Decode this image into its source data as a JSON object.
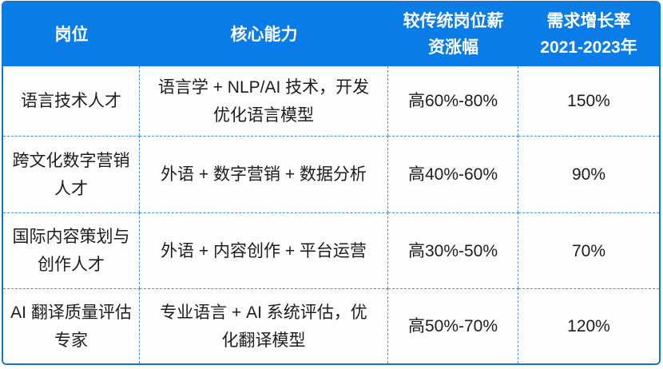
{
  "table": {
    "title_semantic": "new-language-jobs-overview-table",
    "colors": {
      "header_background": "#0a7ce8",
      "header_text": "#ffffff",
      "outer_border": "#1474ca",
      "cell_divider": "#4a8fd8",
      "body_text": "#1d1d1f",
      "body_background": "#fdfdfe"
    },
    "headers": [
      "岗位",
      "核心能力",
      "较传统岗位薪\n资涨幅",
      "需求增长率\n2021-2023年"
    ],
    "rows": [
      {
        "position": "语言技术人才",
        "skills": "语言学 + NLP/AI 技术，开发\n优化语言模型",
        "salary_premium": "高60%-80%",
        "demand_growth": "150%"
      },
      {
        "position": "跨文化数字营销\n人才",
        "skills": "外语 + 数字营销 + 数据分析",
        "salary_premium": "高40%-60%",
        "demand_growth": "90%"
      },
      {
        "position": "国际内容策划与\n创作人才",
        "skills": "外语 + 内容创作 + 平台运营",
        "salary_premium": "高30%-50%",
        "demand_growth": "70%"
      },
      {
        "position": "AI 翻译质量评估\n专家",
        "skills": "专业语言 + AI 系统评估，优\n化翻译模型",
        "salary_premium": "高50%-70%",
        "demand_growth": "120%"
      }
    ]
  }
}
